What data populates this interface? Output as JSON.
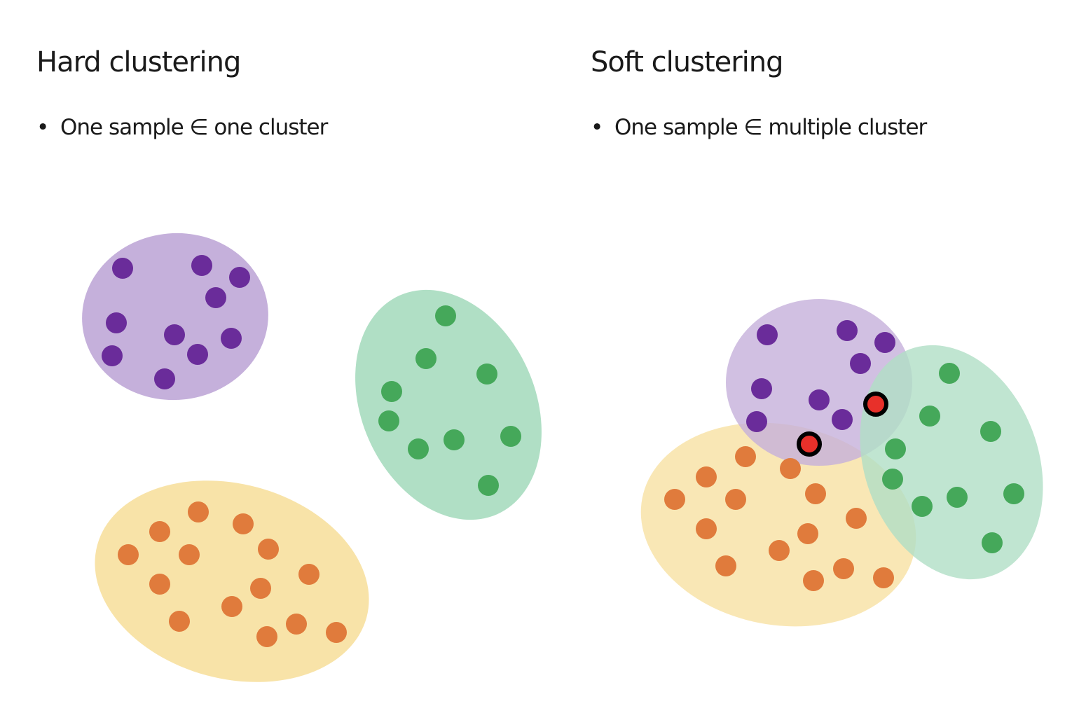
{
  "panels": {
    "hard": {
      "title": "Hard clustering",
      "bullet": "•",
      "description": "One sample ∈ one cluster"
    },
    "soft": {
      "title": "Soft clustering",
      "bullet": "•",
      "description": "One sample ∈ multiple cluster"
    }
  },
  "colors": {
    "purple_region": "#c5b0db",
    "purple_point": "#6a2c9a",
    "green_region": "#b0dfc5",
    "green_point": "#45a85a",
    "yellow_region": "#f8e3a8",
    "orange_point": "#e07b3c",
    "shared_point_fill": "#e8302a",
    "shared_point_outline": "#000000"
  }
}
